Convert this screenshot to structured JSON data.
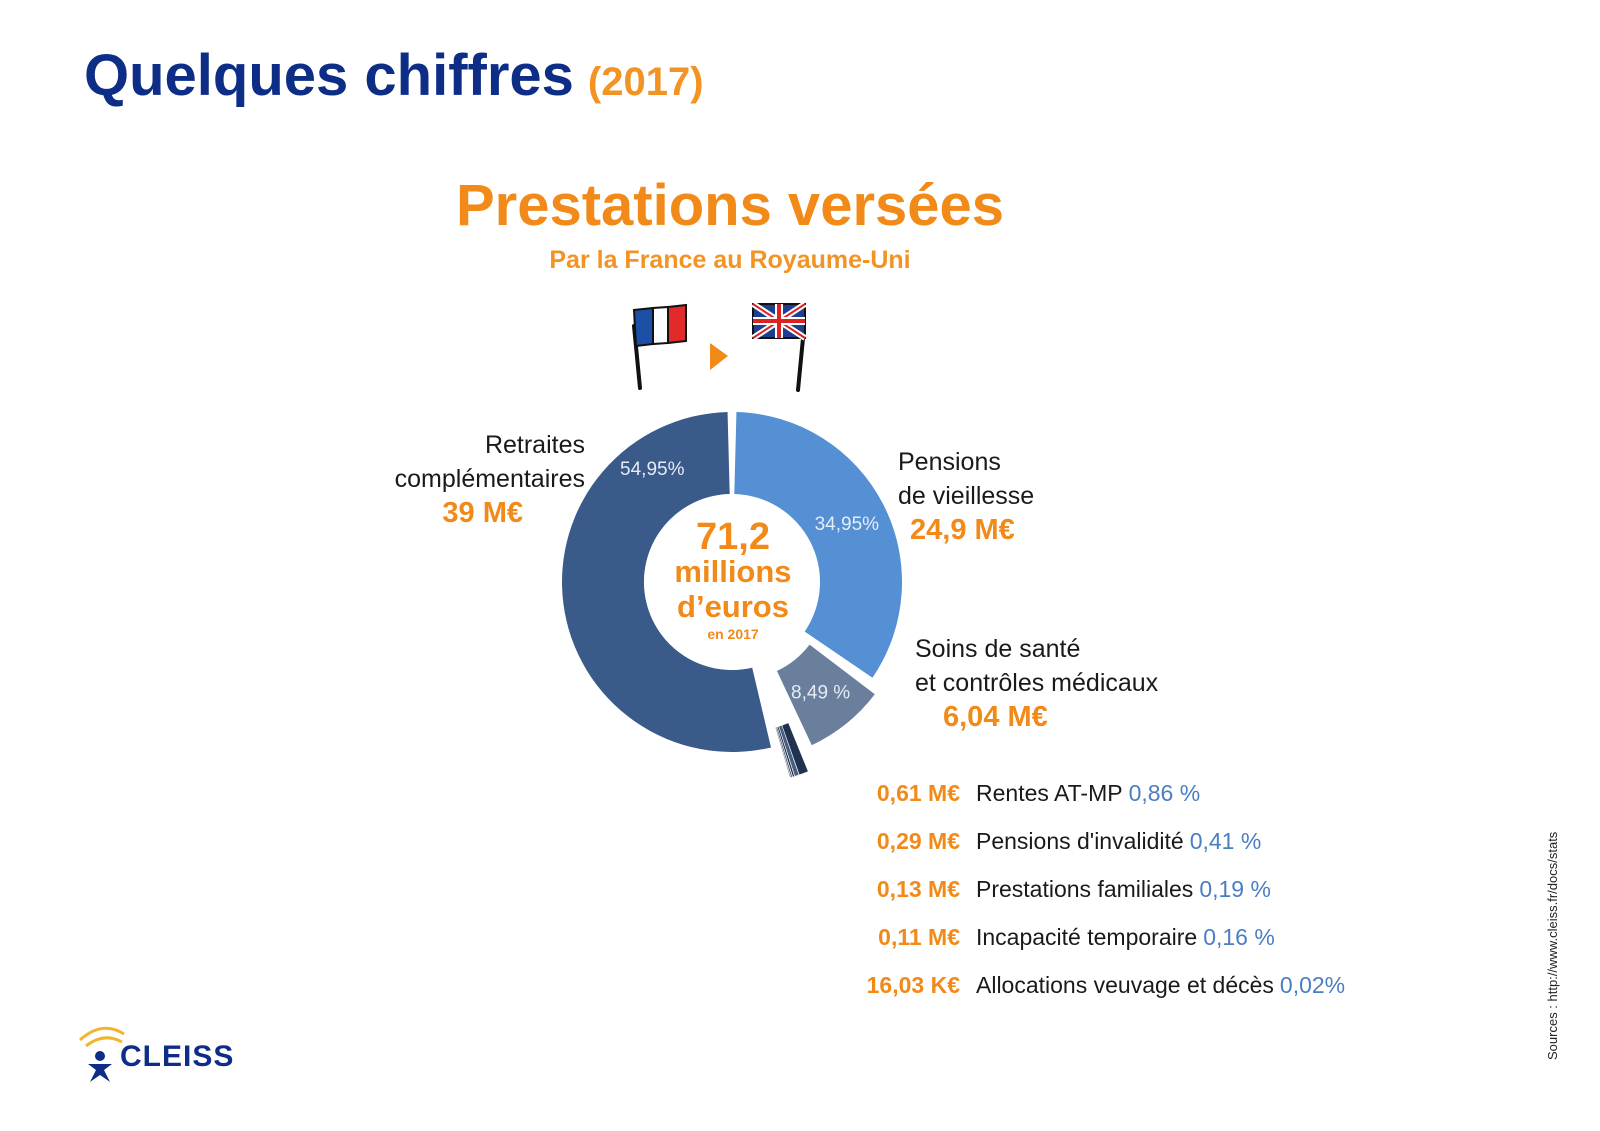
{
  "header": {
    "title": "Quelques chiffres",
    "year": "(2017)"
  },
  "chart_data": {
    "type": "pie",
    "title": "Prestations versées",
    "subtitle": "Par la France au Royaume-Uni",
    "center": {
      "value": "71,2",
      "unit_line1": "millions",
      "unit_line2": "d’euros",
      "year": "en 2017"
    },
    "slices": [
      {
        "name": "Retraites complémentaires",
        "line1": "Retraites",
        "line2": "complémentaires",
        "amount": "39 M€",
        "percent_label": "54,95%",
        "value": 54.95,
        "color": "#3a5a89"
      },
      {
        "name": "Pensions de vieillesse",
        "line1": "Pensions",
        "line2": "de vieillesse",
        "amount": "24,9 M€",
        "percent_label": "34,95%",
        "value": 34.95,
        "color": "#5590d5"
      },
      {
        "name": "Soins de santé et contrôles médicaux",
        "line1": "Soins de santé",
        "line2": "et contrôles médicaux",
        "amount": "6,04 M€",
        "percent_label": "8,49 %",
        "value": 8.49,
        "color": "#6a7f9c"
      }
    ],
    "small_slices": [
      {
        "amount": "0,61 M€",
        "label": "Rentes AT-MP",
        "percent_label": "0,86 %",
        "value": 0.86
      },
      {
        "amount": "0,29 M€",
        "label": "Pensions d'invalidité",
        "percent_label": "0,41 %",
        "value": 0.41
      },
      {
        "amount": "0,13 M€",
        "label": "Prestations familiales",
        "percent_label": "0,19 %",
        "value": 0.19
      },
      {
        "amount": "0,11 M€",
        "label": "Incapacité temporaire",
        "percent_label": "0,16 %",
        "value": 0.16
      },
      {
        "amount": "16,03 K€",
        "label": "Allocations veuvage et décès",
        "percent_label": "0,02%",
        "value": 0.02
      }
    ]
  },
  "source": "Sources : http://www.cleiss.fr/docs/stats",
  "logo": {
    "text": "CLEISS"
  },
  "colors": {
    "title": "#0d2d86",
    "accent": "#f28a19",
    "percent": "#4a7ec4"
  }
}
